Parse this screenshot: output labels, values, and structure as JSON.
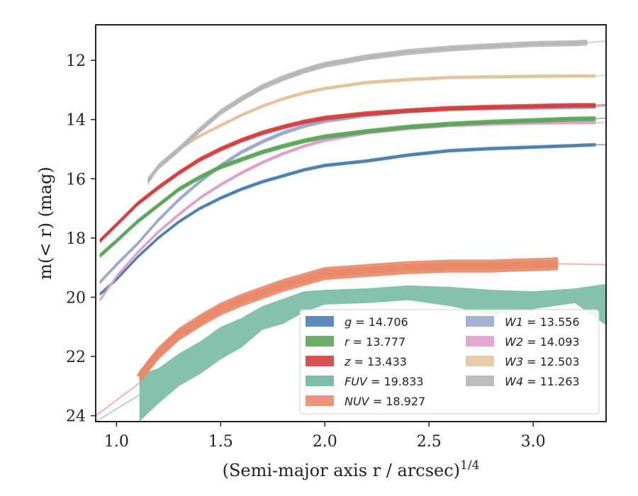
{
  "chart_data": {
    "type": "line",
    "xlabel": "(Semi-major axis r / arcsec)",
    "xlabel_exp": "1/4",
    "ylabel": "m(< r) (mag)",
    "xlim": [
      0.9,
      3.35
    ],
    "ylim": [
      24.2,
      10.8
    ],
    "y_inverted": true,
    "x_ticks": [
      "1.0",
      "1.5",
      "2.0",
      "2.5",
      "3.0"
    ],
    "y_ticks": [
      "12",
      "14",
      "16",
      "18",
      "20",
      "22",
      "24"
    ],
    "grid": false,
    "legend_position": "lower right",
    "series": [
      {
        "name": "g",
        "value": "14.706",
        "color": "#4c7fb0",
        "band": 0.06,
        "extrap_end": [
          3.35,
          14.85
        ],
        "points": [
          [
            0.92,
            19.9
          ],
          [
            1.0,
            19.4
          ],
          [
            1.1,
            18.65
          ],
          [
            1.2,
            18.0
          ],
          [
            1.3,
            17.45
          ],
          [
            1.4,
            17.0
          ],
          [
            1.5,
            16.65
          ],
          [
            1.6,
            16.35
          ],
          [
            1.7,
            16.1
          ],
          [
            1.8,
            15.9
          ],
          [
            1.9,
            15.7
          ],
          [
            2.0,
            15.55
          ],
          [
            2.2,
            15.4
          ],
          [
            2.4,
            15.2
          ],
          [
            2.6,
            15.05
          ],
          [
            2.8,
            14.98
          ],
          [
            3.0,
            14.93
          ],
          [
            3.2,
            14.88
          ],
          [
            3.3,
            14.85
          ]
        ]
      },
      {
        "name": "r",
        "value": "13.777",
        "color": "#5aa55a",
        "band": 0.08,
        "extrap_end": [
          3.35,
          13.95
        ],
        "points": [
          [
            0.92,
            18.6
          ],
          [
            1.0,
            18.1
          ],
          [
            1.1,
            17.45
          ],
          [
            1.2,
            16.9
          ],
          [
            1.3,
            16.35
          ],
          [
            1.4,
            15.95
          ],
          [
            1.5,
            15.6
          ],
          [
            1.6,
            15.35
          ],
          [
            1.7,
            15.1
          ],
          [
            1.8,
            14.9
          ],
          [
            1.9,
            14.72
          ],
          [
            2.0,
            14.58
          ],
          [
            2.2,
            14.4
          ],
          [
            2.4,
            14.25
          ],
          [
            2.6,
            14.15
          ],
          [
            2.8,
            14.08
          ],
          [
            3.0,
            14.03
          ],
          [
            3.2,
            13.98
          ],
          [
            3.3,
            13.97
          ]
        ]
      },
      {
        "name": "z",
        "value": "13.433",
        "color": "#d43e3e",
        "band": 0.08,
        "extrap_end": [
          3.35,
          13.5
        ],
        "points": [
          [
            0.92,
            18.1
          ],
          [
            1.0,
            17.55
          ],
          [
            1.1,
            16.85
          ],
          [
            1.2,
            16.3
          ],
          [
            1.3,
            15.8
          ],
          [
            1.4,
            15.35
          ],
          [
            1.5,
            15.0
          ],
          [
            1.6,
            14.7
          ],
          [
            1.7,
            14.45
          ],
          [
            1.8,
            14.25
          ],
          [
            1.9,
            14.08
          ],
          [
            2.0,
            13.95
          ],
          [
            2.2,
            13.8
          ],
          [
            2.4,
            13.7
          ],
          [
            2.6,
            13.62
          ],
          [
            2.8,
            13.58
          ],
          [
            3.0,
            13.55
          ],
          [
            3.2,
            13.52
          ],
          [
            3.3,
            13.52
          ]
        ]
      },
      {
        "name": "FUV",
        "value": "19.833",
        "color": "#6fb79c",
        "band_lo": [
          22.6,
          22.4,
          21.9,
          21.5,
          21.0,
          20.7,
          20.3,
          20.05,
          19.8,
          19.75,
          19.7,
          19.6,
          19.65,
          19.75,
          19.8,
          19.7,
          19.55
        ],
        "band_hi": [
          24.2,
          23.6,
          23.0,
          22.6,
          22.1,
          21.7,
          21.1,
          20.9,
          20.5,
          20.25,
          20.2,
          20.1,
          20.3,
          20.6,
          20.4,
          20.2,
          20.95
        ],
        "band_x": [
          1.11,
          1.2,
          1.3,
          1.4,
          1.5,
          1.6,
          1.7,
          1.8,
          1.9,
          2.0,
          2.2,
          2.4,
          2.6,
          2.8,
          3.0,
          3.2,
          3.35
        ],
        "extrap": [
          [
            0.9,
            24.2
          ],
          [
            1.11,
            23.3
          ]
        ]
      },
      {
        "name": "NUV",
        "value": "18.927",
        "color": "#e8896a",
        "band": 0.22,
        "extrap_start": [
          [
            0.9,
            24.0
          ],
          [
            1.11,
            22.9
          ]
        ],
        "extrap_end": [
          3.35,
          18.9
        ],
        "points": [
          [
            1.11,
            22.7
          ],
          [
            1.2,
            21.9
          ],
          [
            1.3,
            21.25
          ],
          [
            1.4,
            20.8
          ],
          [
            1.5,
            20.4
          ],
          [
            1.6,
            20.1
          ],
          [
            1.7,
            19.85
          ],
          [
            1.8,
            19.6
          ],
          [
            1.9,
            19.4
          ],
          [
            2.0,
            19.2
          ],
          [
            2.2,
            19.1
          ],
          [
            2.4,
            19.0
          ],
          [
            2.6,
            18.95
          ],
          [
            2.8,
            18.95
          ],
          [
            2.9,
            18.92
          ],
          [
            3.0,
            18.9
          ],
          [
            3.12,
            18.87
          ]
        ]
      },
      {
        "name": "W1",
        "value": "13.556",
        "color": "#9aa9cc",
        "band": 0.07,
        "extrap_end": [
          3.35,
          13.55
        ],
        "points": [
          [
            0.92,
            19.5
          ],
          [
            1.0,
            18.9
          ],
          [
            1.1,
            18.2
          ],
          [
            1.2,
            17.4
          ],
          [
            1.3,
            16.7
          ],
          [
            1.4,
            16.1
          ],
          [
            1.5,
            15.55
          ],
          [
            1.6,
            15.1
          ],
          [
            1.7,
            14.75
          ],
          [
            1.8,
            14.45
          ],
          [
            1.9,
            14.22
          ],
          [
            2.0,
            14.05
          ],
          [
            2.2,
            13.85
          ],
          [
            2.4,
            13.72
          ],
          [
            2.6,
            13.65
          ],
          [
            2.8,
            13.62
          ],
          [
            3.0,
            13.6
          ],
          [
            3.2,
            13.58
          ],
          [
            3.3,
            13.57
          ]
        ]
      },
      {
        "name": "W2",
        "value": "14.093",
        "color": "#e09fcb",
        "band": 0.06,
        "extrap_end": [
          3.35,
          14.1
        ],
        "points": [
          [
            0.92,
            20.1
          ],
          [
            1.0,
            19.3
          ],
          [
            1.1,
            18.5
          ],
          [
            1.2,
            17.8
          ],
          [
            1.3,
            17.2
          ],
          [
            1.4,
            16.65
          ],
          [
            1.5,
            16.2
          ],
          [
            1.6,
            15.8
          ],
          [
            1.7,
            15.45
          ],
          [
            1.8,
            15.15
          ],
          [
            1.9,
            14.9
          ],
          [
            2.0,
            14.7
          ],
          [
            2.2,
            14.45
          ],
          [
            2.4,
            14.3
          ],
          [
            2.6,
            14.2
          ],
          [
            2.8,
            14.15
          ],
          [
            3.0,
            14.12
          ],
          [
            3.2,
            14.1
          ],
          [
            3.3,
            14.1
          ]
        ]
      },
      {
        "name": "W3",
        "value": "12.503",
        "color": "#e2c49c",
        "band": 0.06,
        "extrap_end": [
          3.35,
          12.5
        ],
        "points": [
          [
            1.15,
            16.0
          ],
          [
            1.2,
            15.6
          ],
          [
            1.3,
            15.0
          ],
          [
            1.4,
            14.55
          ],
          [
            1.5,
            14.2
          ],
          [
            1.6,
            13.85
          ],
          [
            1.7,
            13.55
          ],
          [
            1.8,
            13.3
          ],
          [
            1.9,
            13.1
          ],
          [
            2.0,
            12.95
          ],
          [
            2.2,
            12.75
          ],
          [
            2.4,
            12.65
          ],
          [
            2.6,
            12.58
          ],
          [
            2.8,
            12.56
          ],
          [
            3.0,
            12.54
          ],
          [
            3.2,
            12.53
          ],
          [
            3.3,
            12.53
          ]
        ]
      },
      {
        "name": "W4",
        "value": "11.263",
        "color": "#b5b5b5",
        "band": 0.1,
        "extrap_end": [
          3.35,
          11.35
        ],
        "points": [
          [
            1.15,
            16.1
          ],
          [
            1.2,
            15.6
          ],
          [
            1.3,
            15.0
          ],
          [
            1.4,
            14.35
          ],
          [
            1.5,
            13.75
          ],
          [
            1.6,
            13.3
          ],
          [
            1.7,
            12.9
          ],
          [
            1.8,
            12.6
          ],
          [
            1.9,
            12.35
          ],
          [
            2.0,
            12.15
          ],
          [
            2.2,
            11.9
          ],
          [
            2.4,
            11.72
          ],
          [
            2.6,
            11.6
          ],
          [
            2.8,
            11.52
          ],
          [
            3.0,
            11.45
          ],
          [
            3.2,
            11.42
          ],
          [
            3.26,
            11.4
          ]
        ]
      }
    ],
    "legend_left": [
      {
        "name": "g",
        "label": "14.706"
      },
      {
        "name": "r",
        "label": "13.777"
      },
      {
        "name": "z",
        "label": "13.433"
      },
      {
        "name": "FUV",
        "label": "19.833"
      },
      {
        "name": "NUV",
        "label": "18.927"
      }
    ],
    "legend_right": [
      {
        "name": "W1",
        "label": "13.556"
      },
      {
        "name": "W2",
        "label": "14.093"
      },
      {
        "name": "W3",
        "label": "12.503"
      },
      {
        "name": "W4",
        "label": "11.263"
      }
    ]
  }
}
